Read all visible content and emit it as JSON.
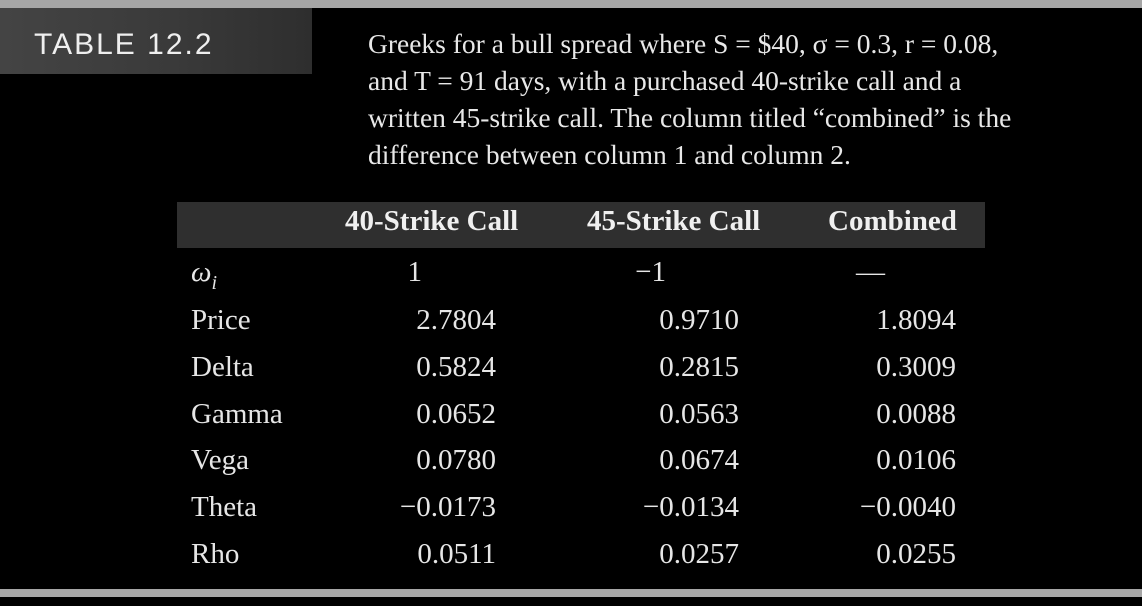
{
  "table_label": "TABLE 12.2",
  "caption": {
    "line1": "Greeks for a bull spread where S = $40, σ = 0.3, r = 0.08,",
    "line2": "and T = 91 days, with a purchased 40-strike call and a",
    "line3": "written 45-strike call. The column titled “combined” is the",
    "line4": "difference between column 1 and column 2."
  },
  "columns": [
    "40-Strike Call",
    "45-Strike Call",
    "Combined"
  ],
  "rows": [
    {
      "label_main": "ω",
      "label_sub": "i",
      "values": [
        "1",
        "−1",
        "—"
      ]
    },
    {
      "label": "Price",
      "values": [
        "2.7804",
        "0.9710",
        "1.8094"
      ]
    },
    {
      "label": "Delta",
      "values": [
        "0.5824",
        "0.2815",
        "0.3009"
      ]
    },
    {
      "label": "Gamma",
      "values": [
        "0.0652",
        "0.0563",
        "0.0088"
      ]
    },
    {
      "label": "Vega",
      "values": [
        "0.0780",
        "0.0674",
        "0.0106"
      ]
    },
    {
      "label": "Theta",
      "values": [
        "−0.0173",
        "−0.0134",
        "−0.0040"
      ]
    },
    {
      "label": "Rho",
      "values": [
        "0.0511",
        "0.0257",
        "0.0255"
      ]
    }
  ]
}
